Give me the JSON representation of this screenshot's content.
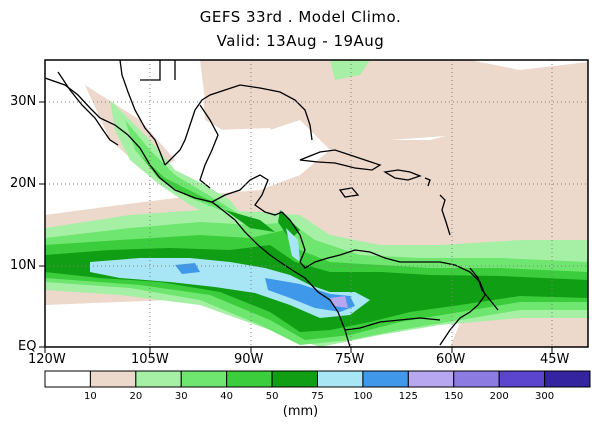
{
  "title": {
    "line1": "GEFS 33rd . Model Climo.",
    "line2": "Valid: 13Aug - 19Aug"
  },
  "axes": {
    "lon_labels": [
      "120W",
      "105W",
      "90W",
      "75W",
      "60W",
      "45W"
    ],
    "lat_labels": [
      "30N",
      "20N",
      "10N",
      "EQ"
    ]
  },
  "colorbar": {
    "units": "(mm)",
    "levels": [
      "10",
      "20",
      "30",
      "40",
      "50",
      "75",
      "100",
      "125",
      "150",
      "200",
      "300"
    ],
    "colors": [
      "#ffffff",
      "#edd8cc",
      "#a6f0a6",
      "#6fe66f",
      "#3ccd3c",
      "#0f9e14",
      "#a8e6f5",
      "#3f98ea",
      "#b7a6f0",
      "#8c7be0",
      "#5b45cf",
      "#3424a0"
    ]
  },
  "map": {
    "land_outline_color": "#000000",
    "grid_style": "dotted",
    "lon_range": [
      "120W",
      "42W"
    ],
    "lat_range": [
      "EQ",
      "35N"
    ]
  }
}
